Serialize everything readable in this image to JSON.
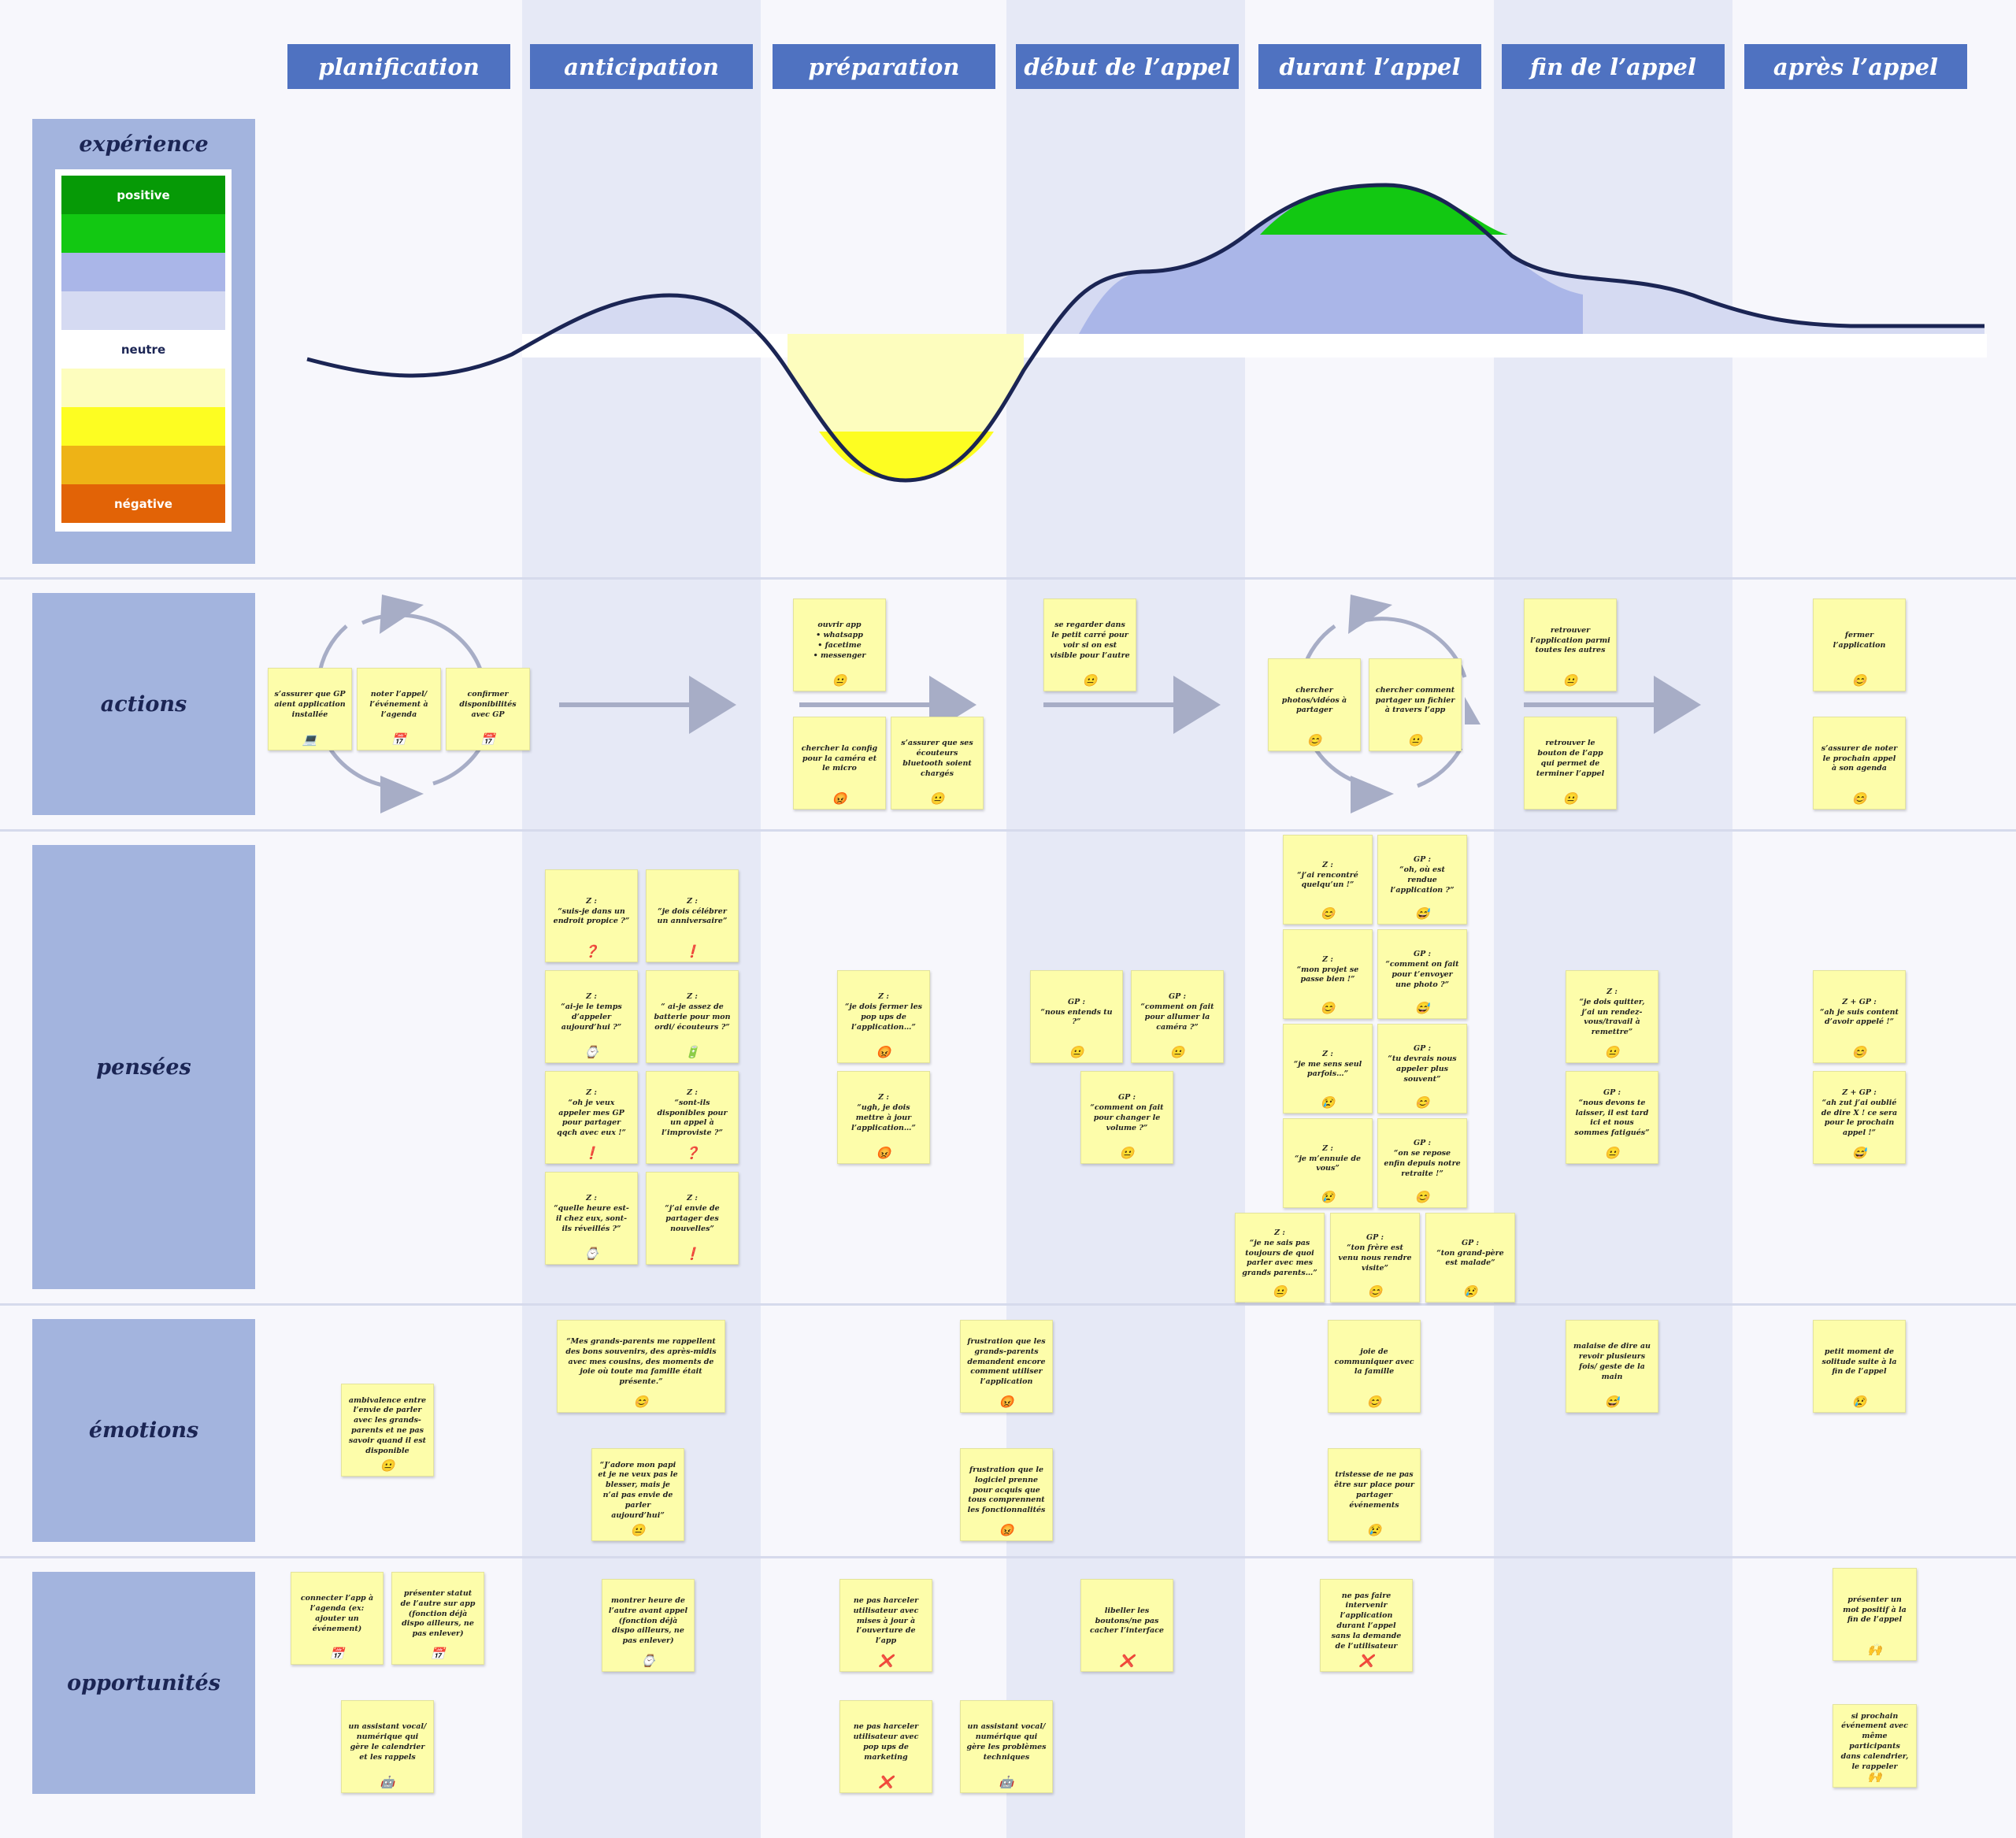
{
  "phases": [
    "planification",
    "anticipation",
    "préparation",
    "début de l’appel",
    "durant l’appel",
    "fin de l’appel",
    "après l’appel"
  ],
  "rows": {
    "experience": "expérience",
    "actions": "actions",
    "pensees": "pensées",
    "emotions": "émotions",
    "opportunites": "opportunités"
  },
  "legend": {
    "positive": "positive",
    "neutral": "neutre",
    "negative": "négative",
    "colors": [
      "#069a06",
      "#12c812",
      "#aab6e8",
      "#d5daf2",
      "#ffffff",
      "#fdfdbe",
      "#fdfd22",
      "#eeb316",
      "#e26306"
    ]
  },
  "experience_curve": {
    "phases": [
      "planification",
      "anticipation",
      "préparation",
      "début de l’appel",
      "durant l’appel",
      "fin de l’appel",
      "après l’appel"
    ],
    "levels": [
      -0.25,
      0.4,
      -1.6,
      0.8,
      1.8,
      0.65,
      0.0
    ],
    "scale": "-2 négative … 0 neutre … +2 positive"
  },
  "notes": {
    "a_plan_1": {
      "text": "s’assurer que GP aient application installée",
      "icon": "💻"
    },
    "a_plan_2": {
      "text": "noter l’appel/ l’événement à l’agenda",
      "icon": "📅"
    },
    "a_plan_3": {
      "text": "confirmer disponibilités avec GP",
      "icon": "📅"
    },
    "a_prep_1": {
      "text": "ouvrir app\n• whatsapp\n• facetime\n• messenger",
      "icon": "😐"
    },
    "a_prep_2": {
      "text": "chercher la config pour la caméra et le micro",
      "icon": "😡"
    },
    "a_prep_3": {
      "text": "s’assurer que ses écouteurs bluetooth soient chargés",
      "icon": "😐"
    },
    "a_debut_1": {
      "text": "se regarder dans le petit carré pour voir si on est visible pour l’autre",
      "icon": "😐"
    },
    "a_dur_1": {
      "text": "chercher photos/vidéos à partager",
      "icon": "😊"
    },
    "a_dur_2": {
      "text": "chercher comment partager un fichier à travers l’app",
      "icon": "😐"
    },
    "a_fin_1": {
      "text": "retrouver l’application parmi toutes les autres",
      "icon": "😐"
    },
    "a_fin_2": {
      "text": "retrouver le bouton de l’app qui permet de terminer l’appel",
      "icon": "😐"
    },
    "a_apres_1": {
      "text": "fermer l’application",
      "icon": "😊"
    },
    "a_apres_2": {
      "text": "s’assurer de noter le prochain appel à son agenda",
      "icon": "😊"
    },
    "p_ant_1": {
      "text": "Z :\n“suis-je dans un endroit propice ?”",
      "icon": "❓"
    },
    "p_ant_2": {
      "text": "Z :\n“je dois célébrer un anniversaire”",
      "icon": "❗"
    },
    "p_ant_3": {
      "text": "Z :\n“ai-je le temps d’appeler aujourd’hui ?”",
      "icon": "⌚"
    },
    "p_ant_4": {
      "text": "Z :\n“ ai-je assez de batterie pour mon ordi/ écouteurs ?”",
      "icon": "🔋"
    },
    "p_ant_5": {
      "text": "Z :\n“oh je veux appeler mes GP pour partager qqch avec eux !”",
      "icon": "❗"
    },
    "p_ant_6": {
      "text": "Z :\n“sont-ils disponibles pour un appel à l’improviste ?”",
      "icon": "❓"
    },
    "p_ant_7": {
      "text": "Z :\n“quelle heure est-il chez eux, sont-ils réveillés ?”",
      "icon": "⌚"
    },
    "p_ant_8": {
      "text": "Z :\n“j’ai envie de partager des nouvelles”",
      "icon": "❗"
    },
    "p_prep_1": {
      "text": "Z :\n“je dois fermer les pop ups de l’application…”",
      "icon": "😡"
    },
    "p_prep_2": {
      "text": "Z :\n“ugh, je dois mettre à jour l’application…”",
      "icon": "😡"
    },
    "p_deb_1": {
      "text": "GP :\n“nous entends tu ?”",
      "icon": "😐"
    },
    "p_deb_2": {
      "text": "GP :\n“comment on fait pour allumer la caméra ?”",
      "icon": "😐"
    },
    "p_deb_3": {
      "text": "GP :\n“comment on fait pour changer le volume ?”",
      "icon": "😐"
    },
    "p_dur_1": {
      "text": "Z :\n“j’ai rencontré quelqu’un !”",
      "icon": "😊"
    },
    "p_dur_2": {
      "text": "GP :\n“oh, où est rendue l’application ?”",
      "icon": "😅"
    },
    "p_dur_3": {
      "text": "Z :\n“mon projet se passe bien !”",
      "icon": "😊"
    },
    "p_dur_4": {
      "text": "GP :\n“comment on fait pour t’envoyer une photo ?”",
      "icon": "😅"
    },
    "p_dur_5": {
      "text": "Z :\n“je me sens seul parfois…”",
      "icon": "😢"
    },
    "p_dur_6": {
      "text": "GP :\n“tu devrais nous appeler plus souvent”",
      "icon": "😊"
    },
    "p_dur_7": {
      "text": "Z :\n“je m’ennuie de vous”",
      "icon": "😢"
    },
    "p_dur_8": {
      "text": "GP :\n“on se repose enfin depuis notre retraite !”",
      "icon": "😊"
    },
    "p_dur_9": {
      "text": "Z :\n“je ne sais pas toujours de quoi parler avec mes grands parents…”",
      "icon": "😐"
    },
    "p_dur_10": {
      "text": "GP :\n“ton frère est venu nous rendre visite”",
      "icon": "😊"
    },
    "p_dur_11": {
      "text": "GP :\n“ton grand-père est malade”",
      "icon": "😢"
    },
    "p_fin_1": {
      "text": "Z :\n“je dois quitter, j’ai un rendez-vous/travail à remettre”",
      "icon": "😐"
    },
    "p_fin_2": {
      "text": "GP :\n“nous devons te laisser, il est tard ici et nous sommes fatigués”",
      "icon": "😐"
    },
    "p_apr_1": {
      "text": "Z + GP :\n“ah je suis content d’avoir appelé !”",
      "icon": "😊"
    },
    "p_apr_2": {
      "text": "Z + GP :\n“ah zut j’ai oublié de dire X ! ce sera pour le prochain appel !”",
      "icon": "😅"
    },
    "e_plan_1": {
      "text": "ambivalence entre l’envie de parler avec les grands-parents et ne pas savoir quand il est disponible",
      "icon": "😐"
    },
    "e_ant_1": {
      "text": "“Mes grands-parents me rappellent des bons souvenirs, des après-midis avec mes cousins, des moments de joie où toute ma famille était présente.”",
      "icon": "😊"
    },
    "e_ant_2": {
      "text": "“J’adore mon papi et je ne veux pas le blesser, mais je n’ai pas envie de parler aujourd’hui”",
      "icon": "😐"
    },
    "e_deb_1": {
      "text": "frustration que les grands-parents demandent encore comment utiliser l’application",
      "icon": "😡"
    },
    "e_deb_2": {
      "text": "frustration que le logiciel prenne pour acquis que tous comprennent les fonctionnalités",
      "icon": "😡"
    },
    "e_dur_1": {
      "text": "joie de communiquer avec la famille",
      "icon": "😊"
    },
    "e_dur_2": {
      "text": "tristesse de ne pas être sur place pour partager événements",
      "icon": "😢"
    },
    "e_fin_1": {
      "text": "malaise de dire au revoir plusieurs fois/ geste de la main",
      "icon": "😅"
    },
    "e_apr_1": {
      "text": "petit moment de solitude suite à la fin de l’appel",
      "icon": "😢"
    },
    "o_plan_1": {
      "text": "connecter l’app à l’agenda (ex: ajouter un événement)",
      "icon": "📅"
    },
    "o_plan_2": {
      "text": "présenter statut de l’autre sur app (fonction déjà dispo ailleurs, ne pas enlever)",
      "icon": "📅"
    },
    "o_plan_3": {
      "text": "un assistant vocal/ numérique qui gère le calendrier et les rappels",
      "icon": "🤖"
    },
    "o_ant_1": {
      "text": "montrer heure de l’autre avant appel (fonction déjà dispo ailleurs, ne pas enlever)",
      "icon": "⌚"
    },
    "o_prep_1": {
      "text": "ne pas harceler utilisateur avec mises à jour à l’ouverture de l’app",
      "icon": "❌"
    },
    "o_prep_2": {
      "text": "ne pas harceler utilisateur avec pop ups de marketing",
      "icon": "❌"
    },
    "o_prep_3": {
      "text": "un assistant vocal/ numérique qui gère les problèmes techniques",
      "icon": "🤖"
    },
    "o_deb_1": {
      "text": "libeller les boutons/ne pas cacher l’interface",
      "icon": "❌"
    },
    "o_dur_1": {
      "text": "ne pas faire intervenir l’application durant l’appel sans la demande de l’utilisateur",
      "icon": "❌"
    },
    "o_apr_1": {
      "text": "présenter un mot positif à la fin de l’appel",
      "icon": "🙌"
    },
    "o_apr_2": {
      "text": "si prochain événement avec même participants dans calendrier, le rappeler",
      "icon": "🙌"
    }
  }
}
